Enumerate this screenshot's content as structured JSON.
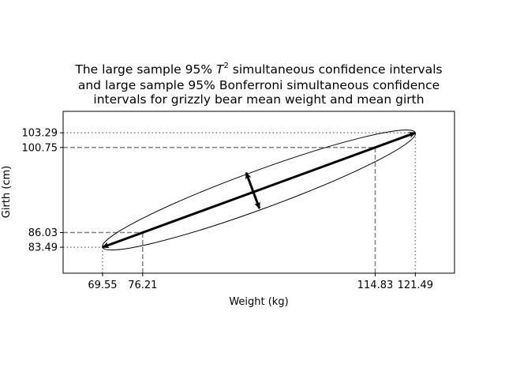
{
  "chart_data": {
    "type": "scatter",
    "title_lines": [
      "The large sample 95% ",
      "and large sample 95% Bonferroni simultaneous confidence",
      "intervals for grizzly bear mean weight and mean girth"
    ],
    "title_line1_tail": " simultaneous confidence intervals",
    "title_symbol": "T",
    "title_superscript": "2",
    "xlabel": "Weight (kg)",
    "ylabel": "Girth (cm)",
    "xlim": [
      63.0,
      128.0
    ],
    "ylim": [
      79.0,
      107.0
    ],
    "xticks": [
      69.55,
      76.21,
      114.83,
      121.49
    ],
    "xtick_labels": [
      "69.55",
      "76.21",
      "114.83",
      "121.49"
    ],
    "yticks": [
      83.49,
      86.03,
      100.75,
      103.29
    ],
    "ytick_labels": [
      "83.49",
      "86.03",
      "100.75",
      "103.29"
    ],
    "t2_intervals": {
      "weight": [
        69.55,
        121.49
      ],
      "girth": [
        83.49,
        103.29
      ],
      "line_style": "dotted"
    },
    "bonferroni_intervals": {
      "weight": [
        76.21,
        114.83
      ],
      "girth": [
        86.03,
        100.75
      ],
      "line_style": "dashed"
    },
    "ellipse": {
      "center": [
        95.52,
        93.39
      ],
      "major_axis_ends": [
        [
          69.55,
          83.49
        ],
        [
          121.49,
          103.29
        ]
      ],
      "minor_axis_ends": [
        [
          93.4,
          96.4
        ],
        [
          95.6,
          90.2
        ]
      ]
    },
    "grid": false,
    "colors": {
      "reference_lines": "#808080",
      "ellipse": "#000000",
      "arrows": "#000000"
    }
  }
}
